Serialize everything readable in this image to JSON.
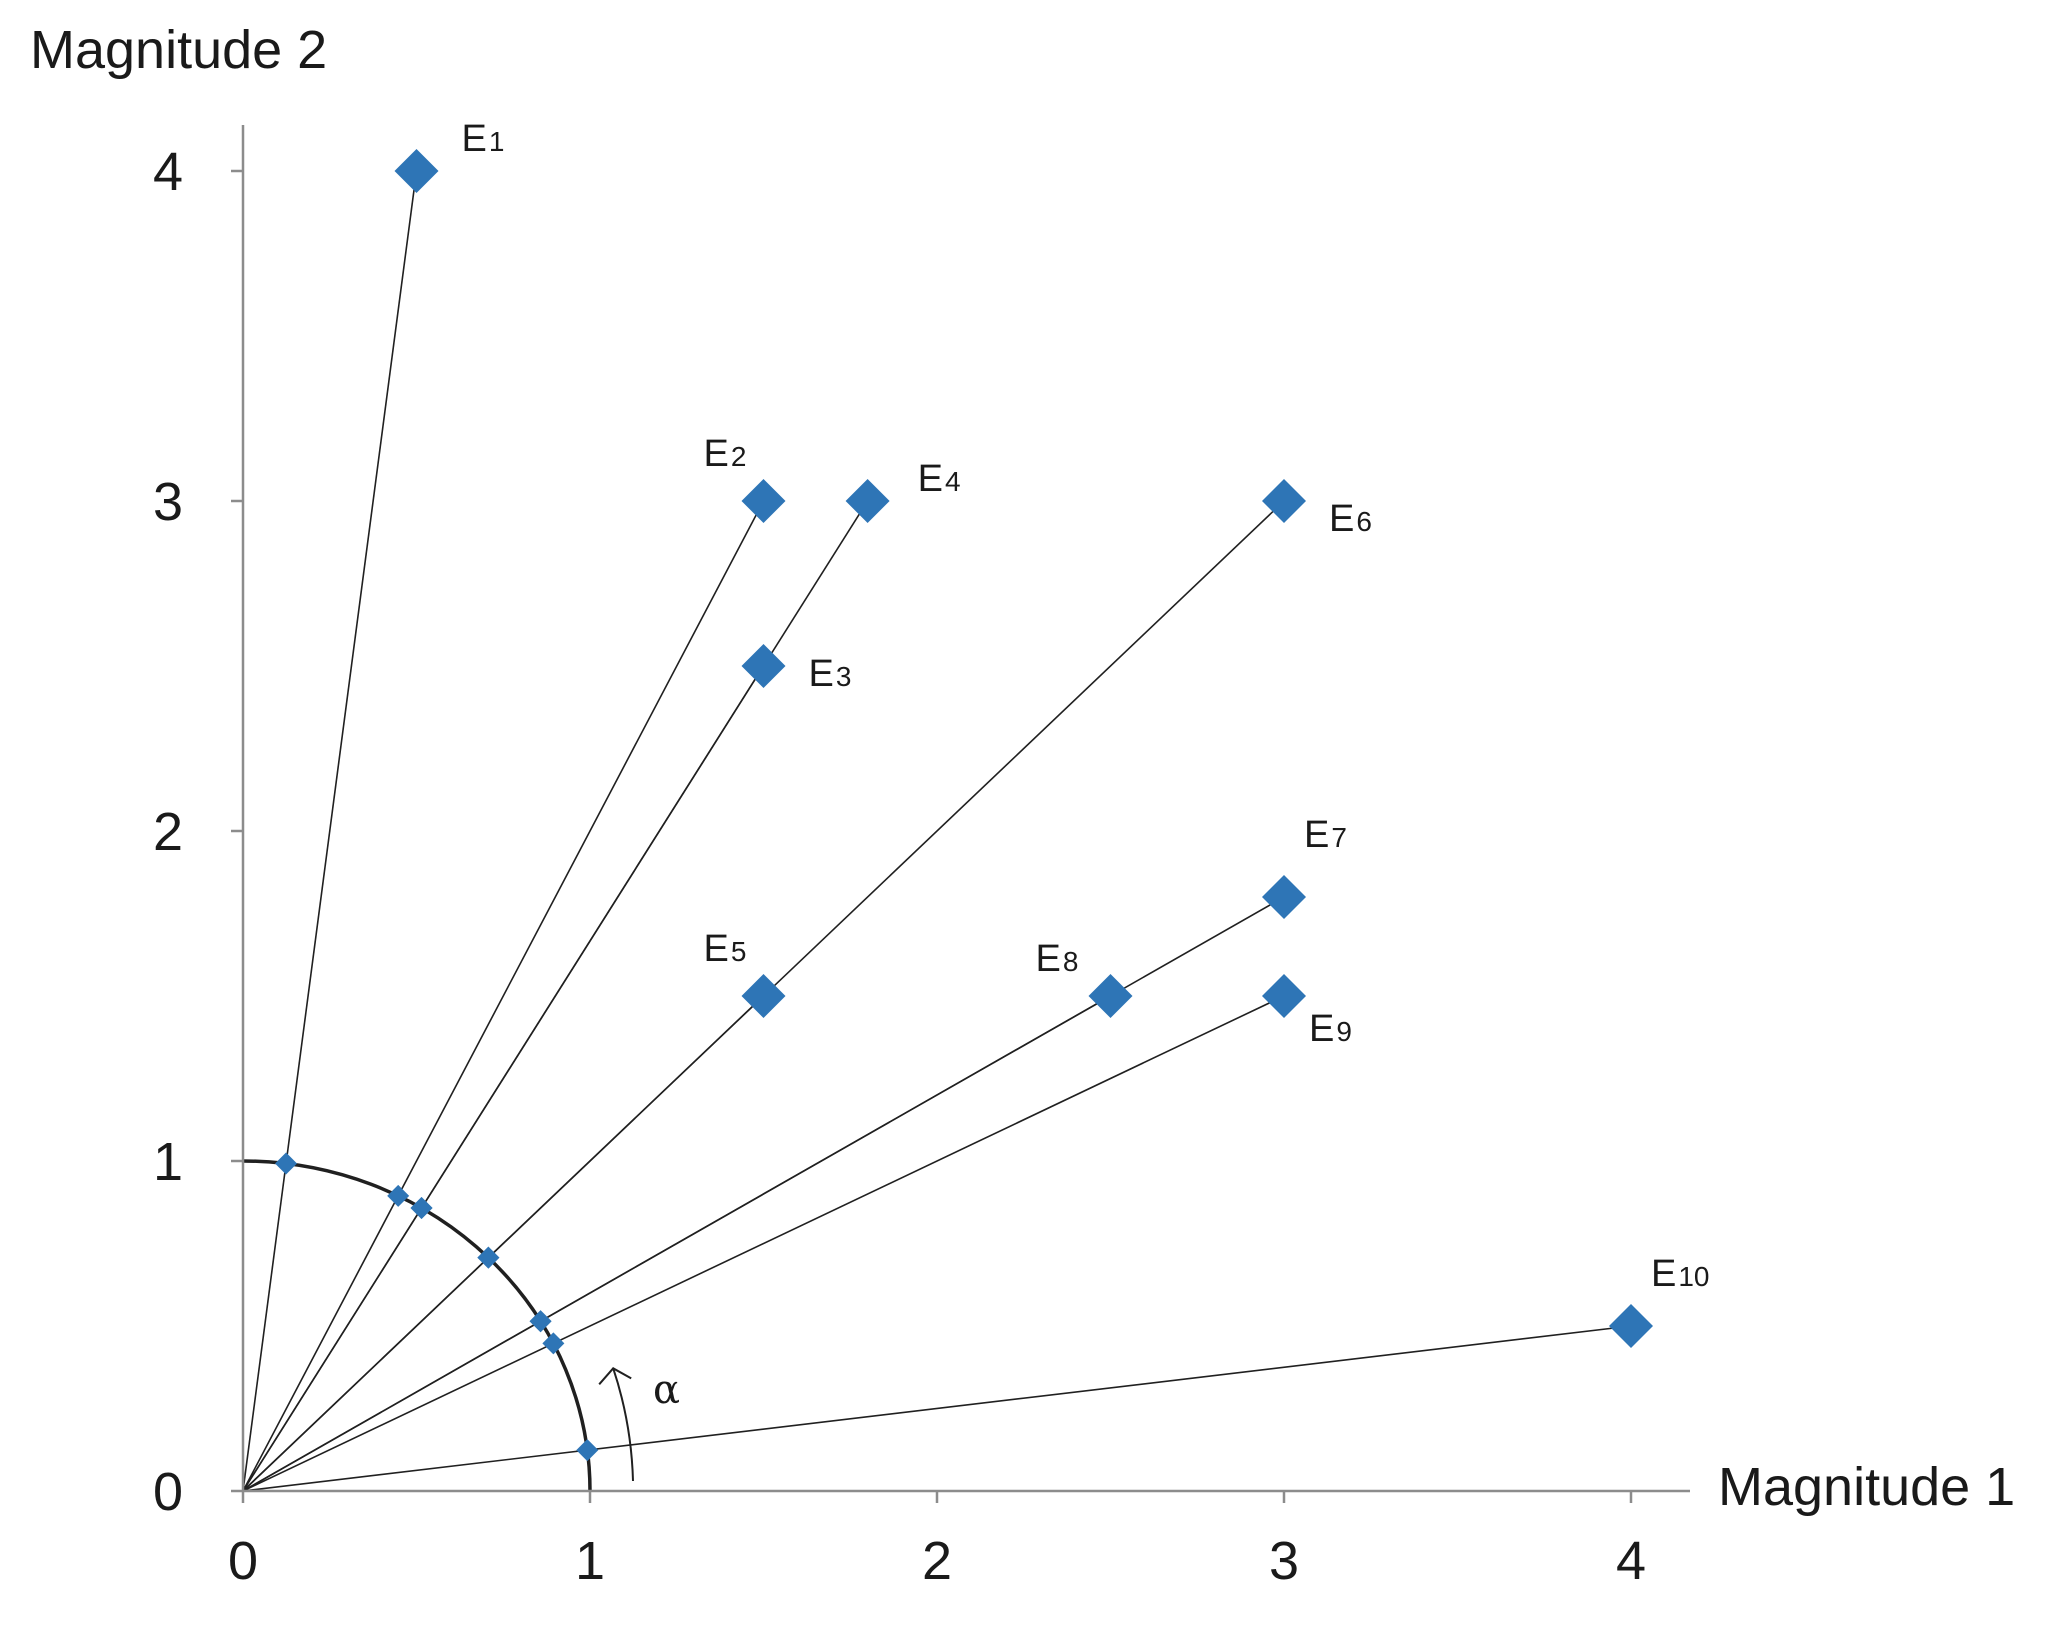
{
  "chart_data": {
    "type": "scatter",
    "xlabel": "Magnitude 1",
    "ylabel": "Magnitude 2",
    "xlim": [
      0,
      4
    ],
    "ylim": [
      0,
      4
    ],
    "x_ticks": [
      "0",
      "1",
      "2",
      "3",
      "4"
    ],
    "y_ticks": [
      "0",
      "1",
      "2",
      "3",
      "4"
    ],
    "grid": false,
    "marker_color": "#2e75b6",
    "points": [
      {
        "label": "E",
        "index": "1",
        "x": 0.5,
        "y": 4.0
      },
      {
        "label": "E",
        "index": "2",
        "x": 1.5,
        "y": 3.0
      },
      {
        "label": "E",
        "index": "3",
        "x": 1.5,
        "y": 2.5
      },
      {
        "label": "E",
        "index": "4",
        "x": 1.8,
        "y": 3.0
      },
      {
        "label": "E",
        "index": "5",
        "x": 1.5,
        "y": 1.5
      },
      {
        "label": "E",
        "index": "6",
        "x": 3.0,
        "y": 3.0
      },
      {
        "label": "E",
        "index": "7",
        "x": 3.0,
        "y": 1.8
      },
      {
        "label": "E",
        "index": "8",
        "x": 2.5,
        "y": 1.5
      },
      {
        "label": "E",
        "index": "9",
        "x": 3.0,
        "y": 1.5
      },
      {
        "label": "E",
        "index": "10",
        "x": 4.0,
        "y": 0.5
      }
    ],
    "unit_circle_radius": 1,
    "angle_label": "α"
  }
}
